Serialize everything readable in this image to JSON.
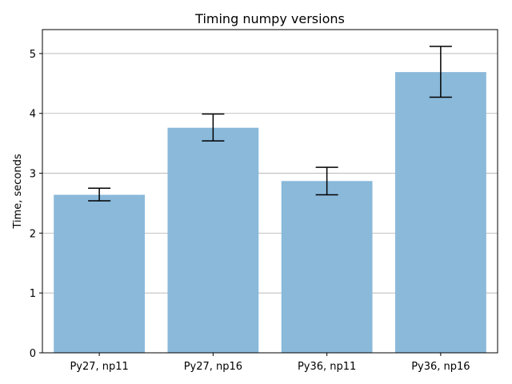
{
  "chart_data": {
    "type": "bar",
    "title": "Timing numpy versions",
    "xlabel": "",
    "ylabel": "Time, seconds",
    "categories": [
      "Py27, np11",
      "Py27, np16",
      "Py36, np11",
      "Py36, np16"
    ],
    "values": [
      2.64,
      3.76,
      2.87,
      4.69
    ],
    "error_low": [
      2.54,
      3.54,
      2.64,
      4.27
    ],
    "error_high": [
      2.75,
      3.99,
      3.1,
      5.12
    ],
    "ylim": [
      0,
      5.4
    ],
    "yticks": [
      0,
      1,
      2,
      3,
      4,
      5
    ],
    "grid": "y",
    "bar_color": "#8ab9da",
    "error_color": "#000000"
  }
}
